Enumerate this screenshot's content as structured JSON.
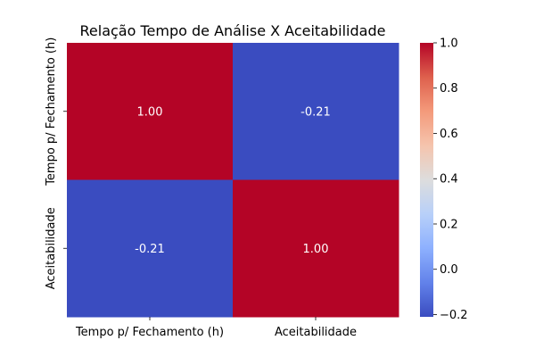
{
  "chart_data": {
    "type": "heatmap",
    "title": "Relação Tempo de Análise X Aceitabilidade",
    "xlabel": "",
    "ylabel": "",
    "x_categories": [
      "Tempo p/ Fechamento (h)",
      "Aceitabilidade"
    ],
    "y_categories": [
      "Tempo p/ Fechamento (h)",
      "Aceitabilidade"
    ],
    "matrix": [
      [
        1.0,
        -0.21
      ],
      [
        -0.21,
        1.0
      ]
    ],
    "cell_labels": [
      [
        "1.00",
        "-0.21"
      ],
      [
        "-0.21",
        "1.00"
      ]
    ],
    "colormap": "coolwarm",
    "colorbar": {
      "vmin": -0.21,
      "vmax": 1.0,
      "ticks": [
        -0.2,
        0.0,
        0.2,
        0.4,
        0.6,
        0.8,
        1.0
      ],
      "tick_labels": [
        "−0.2",
        "0.0",
        "0.2",
        "0.4",
        "0.6",
        "0.8",
        "1.0"
      ]
    },
    "grid": false
  }
}
